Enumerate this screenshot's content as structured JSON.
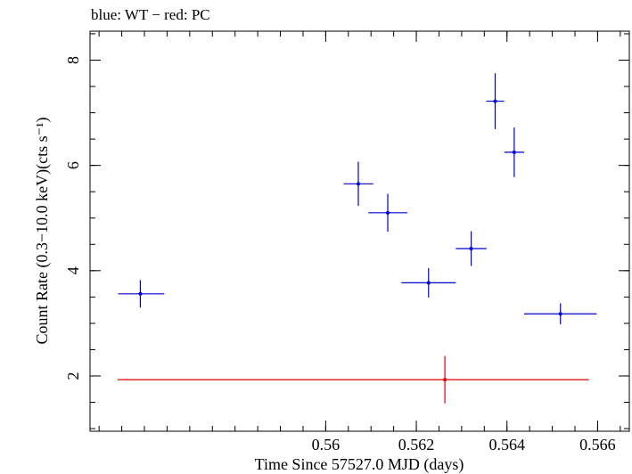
{
  "chart_data": {
    "type": "scatter",
    "title": "blue: WT − red: PC",
    "xlabel": "Time Since 57527.0 MJD (days)",
    "ylabel": "Count Rate (0.3−10.0 keV)(cts s⁻¹)",
    "xlim": [
      0.5548,
      0.5667
    ],
    "ylim": [
      0.95,
      8.55
    ],
    "xticks": [
      0.56,
      0.562,
      0.564,
      0.566
    ],
    "xtick_labels": [
      "0.56",
      "0.562",
      "0.564",
      "0.566"
    ],
    "xminor_step": 0.0005,
    "yticks": [
      2,
      4,
      6,
      8
    ],
    "ytick_labels": [
      "2",
      "4",
      "6",
      "8"
    ],
    "yminor_step": 0.5,
    "grid": false,
    "series": [
      {
        "color": "#0000cc",
        "points": [
          {
            "x": 0.55591,
            "y": 3.56,
            "xerr_minus": 0.00049,
            "xerr_plus": 0.00053,
            "yerr_minus": 0.26,
            "yerr_plus": 0.26
          },
          {
            "x": 0.56072,
            "y": 5.65,
            "xerr_minus": 0.00032,
            "xerr_plus": 0.00033,
            "yerr_minus": 0.42,
            "yerr_plus": 0.42
          },
          {
            "x": 0.56137,
            "y": 5.1,
            "xerr_minus": 0.00043,
            "xerr_plus": 0.00043,
            "yerr_minus": 0.36,
            "yerr_plus": 0.36
          },
          {
            "x": 0.56227,
            "y": 3.77,
            "xerr_minus": 0.0006,
            "xerr_plus": 0.0006,
            "yerr_minus": 0.28,
            "yerr_plus": 0.28
          },
          {
            "x": 0.56321,
            "y": 4.42,
            "xerr_minus": 0.00034,
            "xerr_plus": 0.00034,
            "yerr_minus": 0.33,
            "yerr_plus": 0.33
          },
          {
            "x": 0.56374,
            "y": 7.22,
            "xerr_minus": 0.0002,
            "xerr_plus": 0.0002,
            "yerr_minus": 0.53,
            "yerr_plus": 0.53
          },
          {
            "x": 0.56416,
            "y": 6.25,
            "xerr_minus": 0.00022,
            "xerr_plus": 0.00022,
            "yerr_minus": 0.47,
            "yerr_plus": 0.47
          },
          {
            "x": 0.56518,
            "y": 3.18,
            "xerr_minus": 0.0008,
            "xerr_plus": 0.0008,
            "yerr_minus": 0.2,
            "yerr_plus": 0.2
          }
        ]
      },
      {
        "color": "#dd0000",
        "points": [
          {
            "x": 0.56263,
            "y": 1.93,
            "xerr_minus": 0.00722,
            "xerr_plus": 0.00318,
            "yerr_minus": 0.45,
            "yerr_plus": 0.45
          }
        ]
      }
    ]
  }
}
